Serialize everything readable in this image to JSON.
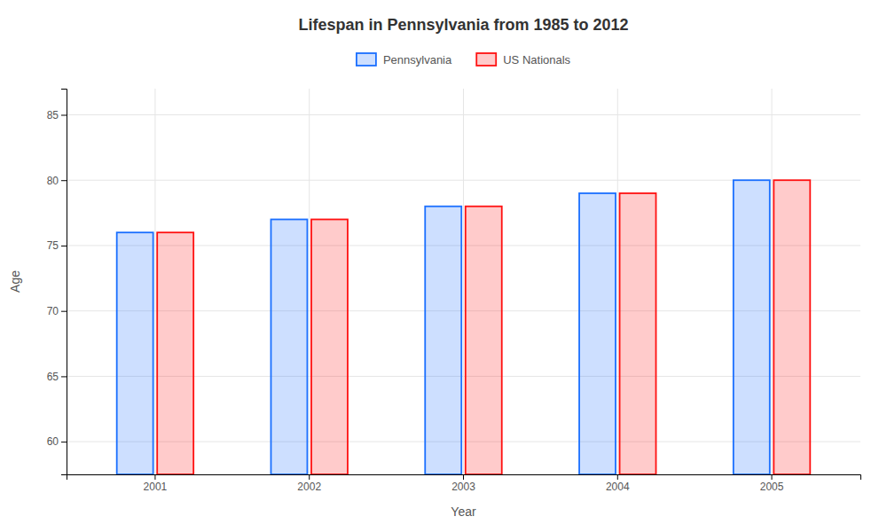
{
  "chart_data": {
    "type": "bar",
    "title": "Lifespan in Pennsylvania from 1985 to 2012",
    "xlabel": "Year",
    "ylabel": "Age",
    "categories": [
      "2001",
      "2002",
      "2003",
      "2004",
      "2005"
    ],
    "series": [
      {
        "name": "Pennsylvania",
        "color": "#1a6fff",
        "values": [
          76,
          77,
          78,
          79,
          80
        ]
      },
      {
        "name": "US Nationals",
        "color": "#ff1111",
        "values": [
          76,
          77,
          78,
          79,
          80
        ]
      }
    ],
    "ylim": [
      57.5,
      87
    ],
    "yticks": [
      60,
      65,
      70,
      75,
      80,
      85
    ],
    "grid": true,
    "legend": "top"
  }
}
